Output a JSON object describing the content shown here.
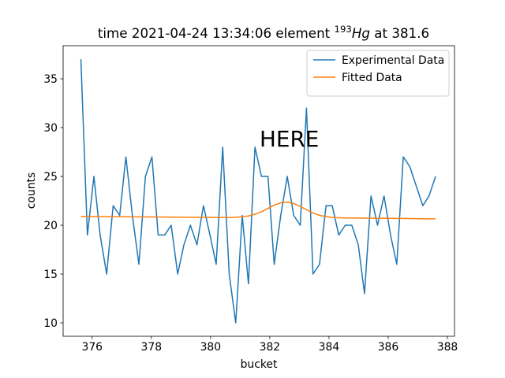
{
  "chart_data": {
    "type": "line",
    "title": {
      "prefix": "time 2021-04-24 13:34:06 element ",
      "mass": "193",
      "symbol": "Hg",
      "suffix": " at 381.6"
    },
    "x_label": "bucket",
    "y_label": "counts",
    "annotation": {
      "text": "HERE",
      "color": "#ff0000"
    },
    "x": [
      375.62,
      375.84,
      376.06,
      376.27,
      376.49,
      376.71,
      376.93,
      377.14,
      377.36,
      377.58,
      377.8,
      378.02,
      378.23,
      378.45,
      378.67,
      378.89,
      379.1,
      379.32,
      379.54,
      379.76,
      379.98,
      380.19,
      380.41,
      380.63,
      380.85,
      381.07,
      381.28,
      381.5,
      381.72,
      381.94,
      382.15,
      382.37,
      382.59,
      382.81,
      383.03,
      383.24,
      383.46,
      383.68,
      383.9,
      384.11,
      384.33,
      384.55,
      384.77,
      384.99,
      385.2,
      385.42,
      385.64,
      385.86,
      386.08,
      386.29,
      386.51,
      386.73,
      386.95,
      387.17,
      387.38,
      387.6
    ],
    "series": [
      {
        "name": "Experimental Data",
        "color": "#1f77b4",
        "values": [
          37,
          19,
          25,
          19,
          15,
          22,
          21,
          27,
          21,
          16,
          25,
          27,
          19,
          19,
          20,
          15,
          18,
          20,
          18,
          22,
          19,
          16,
          28,
          15,
          10,
          21,
          14,
          28,
          25,
          25,
          16,
          21,
          25,
          21,
          20,
          32,
          15,
          16,
          22,
          22,
          19,
          20,
          20,
          18,
          13,
          23,
          20,
          23,
          19,
          16,
          27,
          26,
          24,
          22,
          23,
          25
        ]
      },
      {
        "name": "Fitted Data",
        "color": "#ff7f0e",
        "values": [
          20.9,
          20.9,
          20.89,
          20.89,
          20.88,
          20.88,
          20.87,
          20.87,
          20.86,
          20.86,
          20.85,
          20.85,
          20.84,
          20.84,
          20.83,
          20.83,
          20.82,
          20.82,
          20.81,
          20.81,
          20.81,
          20.8,
          20.8,
          20.79,
          20.82,
          20.87,
          20.95,
          21.13,
          21.38,
          21.72,
          22.05,
          22.3,
          22.37,
          22.22,
          21.92,
          21.59,
          21.26,
          21.02,
          20.88,
          20.8,
          20.77,
          20.75,
          20.74,
          20.74,
          20.73,
          20.73,
          20.72,
          20.72,
          20.71,
          20.7,
          20.7,
          20.69,
          20.68,
          20.67,
          20.66,
          20.65
        ]
      }
    ],
    "xlim": [
      375.02,
      388.24
    ],
    "ylim": [
      8.63,
      38.39
    ],
    "xticks": [
      376,
      378,
      380,
      382,
      384,
      386,
      388
    ],
    "yticks": [
      10,
      15,
      20,
      25,
      30,
      35
    ],
    "legend": "upper right"
  }
}
